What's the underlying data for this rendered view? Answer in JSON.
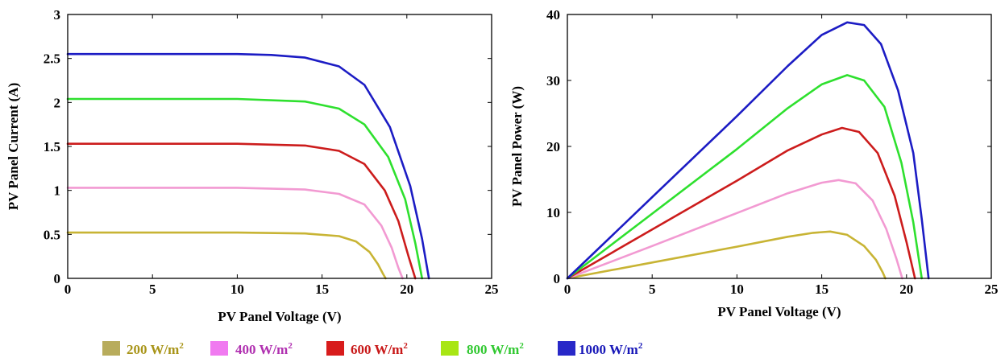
{
  "chart_data": [
    {
      "type": "line",
      "title": "",
      "xlabel": "PV Panel Voltage (V)",
      "ylabel": "PV Panel Current (A)",
      "xlim": [
        0,
        25
      ],
      "ylim": [
        0,
        3
      ],
      "x_ticks": [
        "0",
        "5",
        "10",
        "15",
        "20",
        "25"
      ],
      "y_ticks": [
        "0",
        "0.5",
        "1",
        "1.5",
        "2",
        "2.5",
        "3"
      ],
      "grid": false,
      "series": [
        {
          "name": "200 W/m2",
          "color": "#c8b434",
          "x": [
            0,
            5,
            10,
            14,
            16,
            17,
            17.8,
            18.3,
            18.6,
            18.75
          ],
          "y": [
            0.52,
            0.52,
            0.52,
            0.51,
            0.48,
            0.42,
            0.3,
            0.16,
            0.05,
            0
          ]
        },
        {
          "name": "400 W/m2",
          "color": "#f29ad2",
          "x": [
            0,
            5,
            10,
            14,
            16,
            17.5,
            18.5,
            19.1,
            19.5,
            19.75
          ],
          "y": [
            1.03,
            1.03,
            1.03,
            1.01,
            0.96,
            0.84,
            0.6,
            0.35,
            0.12,
            0
          ]
        },
        {
          "name": "600 W/m2",
          "color": "#cc1c1c",
          "x": [
            0,
            5,
            10,
            14,
            16,
            17.5,
            18.7,
            19.5,
            20.1,
            20.5
          ],
          "y": [
            1.53,
            1.53,
            1.53,
            1.51,
            1.45,
            1.3,
            1.0,
            0.65,
            0.25,
            0
          ]
        },
        {
          "name": "800 W/m2",
          "color": "#2ee02e",
          "x": [
            0,
            5,
            10,
            14,
            16,
            17.5,
            18.9,
            19.9,
            20.5,
            20.9
          ],
          "y": [
            2.04,
            2.04,
            2.04,
            2.01,
            1.93,
            1.75,
            1.38,
            0.9,
            0.4,
            0
          ]
        },
        {
          "name": "1000 W/m2",
          "color": "#1c1cc4",
          "x": [
            0,
            5,
            10,
            12,
            14,
            16,
            17.5,
            19,
            20.2,
            20.9,
            21.3
          ],
          "y": [
            2.55,
            2.55,
            2.55,
            2.54,
            2.51,
            2.41,
            2.2,
            1.72,
            1.05,
            0.45,
            0
          ]
        }
      ]
    },
    {
      "type": "line",
      "title": "",
      "xlabel": "PV Panel Voltage (V)",
      "ylabel": "PV Panel Power (W)",
      "xlim": [
        0,
        25
      ],
      "ylim": [
        0,
        40
      ],
      "x_ticks": [
        "0",
        "5",
        "10",
        "15",
        "20",
        "25"
      ],
      "y_ticks": [
        "0",
        "10",
        "20",
        "30",
        "40"
      ],
      "grid": false,
      "series": [
        {
          "name": "200 W/m2",
          "color": "#c8b434",
          "x": [
            0,
            5,
            10,
            13,
            14.5,
            15.5,
            16.5,
            17.5,
            18.2,
            18.6,
            18.75
          ],
          "y": [
            0,
            2.4,
            4.8,
            6.3,
            6.9,
            7.1,
            6.6,
            4.9,
            2.8,
            0.9,
            0
          ]
        },
        {
          "name": "400 W/m2",
          "color": "#f29ad2",
          "x": [
            0,
            5,
            10,
            13,
            15,
            16,
            17,
            18,
            18.8,
            19.4,
            19.75
          ],
          "y": [
            0,
            4.9,
            9.9,
            12.9,
            14.5,
            14.9,
            14.4,
            11.8,
            7.5,
            3.0,
            0
          ]
        },
        {
          "name": "600 W/m2",
          "color": "#cc1c1c",
          "x": [
            0,
            5,
            10,
            13,
            15,
            16.2,
            17.2,
            18.3,
            19.3,
            20.0,
            20.5
          ],
          "y": [
            0,
            7.4,
            14.8,
            19.4,
            21.8,
            22.8,
            22.2,
            19.0,
            12.5,
            5.5,
            0
          ]
        },
        {
          "name": "800 W/m2",
          "color": "#2ee02e",
          "x": [
            0,
            5,
            10,
            13,
            15,
            16.5,
            17.5,
            18.7,
            19.7,
            20.4,
            20.9
          ],
          "y": [
            0,
            9.8,
            19.6,
            25.8,
            29.4,
            30.8,
            30.0,
            26.0,
            17.5,
            8.5,
            0
          ]
        },
        {
          "name": "1000 W/m2",
          "color": "#1c1cc4",
          "x": [
            0,
            5,
            10,
            13,
            15,
            16.5,
            17.5,
            18.5,
            19.5,
            20.4,
            20.9,
            21.3
          ],
          "y": [
            0,
            12.3,
            24.6,
            32.2,
            36.9,
            38.8,
            38.4,
            35.5,
            28.5,
            19.0,
            9.0,
            0
          ]
        }
      ]
    }
  ],
  "legend": {
    "items": [
      {
        "swatch_color": "#b8ac5c",
        "text_color": "#a89418",
        "text": "200 W/m",
        "sup": "2"
      },
      {
        "swatch_color": "#f07af0",
        "text_color": "#b030b0",
        "text": "400 W/m",
        "sup": "2"
      },
      {
        "swatch_color": "#d81c1c",
        "text_color": "#c81818",
        "text": "600 W/m",
        "sup": "2"
      },
      {
        "swatch_color": "#a8e614",
        "text_color": "#30c830",
        "text": "800 W/m",
        "sup": "2"
      },
      {
        "swatch_color": "#2828c8",
        "text_color": "#1818b8",
        "text": "1000 W/m",
        "sup": "2"
      }
    ]
  }
}
